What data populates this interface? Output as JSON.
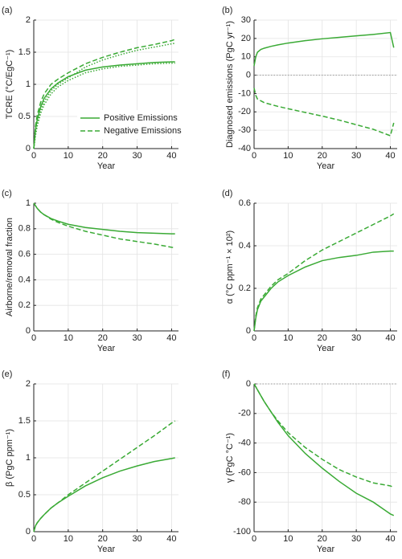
{
  "chart_data": [
    {
      "type": "line",
      "title": "(a)",
      "x_label": "Year",
      "y_label": "TCRE (°C/EgC⁻¹)",
      "x": [
        0,
        0.5,
        1,
        2,
        3,
        5,
        7,
        10,
        15,
        20,
        25,
        30,
        35,
        40,
        41
      ],
      "xlim": [
        0,
        42
      ],
      "xticks": [
        0,
        10,
        20,
        30,
        40
      ],
      "ylim": [
        0,
        2
      ],
      "yticks": [
        0,
        0.5,
        1,
        1.5,
        2
      ],
      "grid": true,
      "zero_line": false,
      "legend": "lower right",
      "series": [
        {
          "name": "Positive Emissions",
          "color": "#3aaa35",
          "style": "solid",
          "values": [
            0,
            0.3,
            0.45,
            0.65,
            0.78,
            0.93,
            1.02,
            1.12,
            1.22,
            1.27,
            1.3,
            1.32,
            1.34,
            1.35,
            1.35
          ]
        },
        {
          "name": "Negative Emissions",
          "color": "#3aaa35",
          "style": "dashed",
          "values": [
            0,
            0.35,
            0.52,
            0.72,
            0.85,
            1.0,
            1.08,
            1.18,
            1.32,
            1.42,
            1.5,
            1.57,
            1.62,
            1.68,
            1.7
          ]
        },
        {
          "color": "#3aaa35",
          "style": "dotted",
          "values": [
            0,
            0.25,
            0.4,
            0.6,
            0.73,
            0.9,
            1.0,
            1.1,
            1.27,
            1.38,
            1.46,
            1.53,
            1.58,
            1.63,
            1.64
          ]
        },
        {
          "color": "#3aaa35",
          "style": "dotted",
          "values": [
            0,
            0.2,
            0.35,
            0.55,
            0.68,
            0.85,
            0.96,
            1.06,
            1.18,
            1.24,
            1.28,
            1.3,
            1.32,
            1.33,
            1.33
          ]
        }
      ]
    },
    {
      "type": "line",
      "title": "(b)",
      "x_label": "Year",
      "y_label": "Diagnosed emissions (PgC yr⁻¹)",
      "x": [
        0,
        0.5,
        1,
        2,
        3,
        5,
        7,
        10,
        15,
        20,
        25,
        30,
        35,
        40,
        41
      ],
      "xlim": [
        0,
        42
      ],
      "xticks": [
        0,
        10,
        20,
        30,
        40
      ],
      "ylim": [
        -40,
        30
      ],
      "yticks": [
        -40,
        -30,
        -20,
        -10,
        0,
        10,
        20,
        30
      ],
      "grid": true,
      "zero_line": true,
      "series": [
        {
          "color": "#3aaa35",
          "style": "solid",
          "values": [
            5,
            10,
            12.5,
            14,
            14.7,
            15.7,
            16.5,
            17.5,
            18.8,
            19.8,
            20.6,
            21.4,
            22.2,
            23.2,
            15
          ]
        },
        {
          "color": "#3aaa35",
          "style": "dashed",
          "values": [
            -7,
            -11,
            -13,
            -14,
            -15,
            -16,
            -17,
            -18.3,
            -20.3,
            -22.3,
            -24.5,
            -27,
            -29.5,
            -33,
            -26
          ]
        }
      ]
    },
    {
      "type": "line",
      "title": "(c)",
      "x_label": "Year",
      "y_label": "Airborne/removal fraction",
      "x": [
        0,
        0.5,
        1,
        2,
        3,
        5,
        7,
        10,
        15,
        20,
        25,
        30,
        35,
        40,
        41
      ],
      "xlim": [
        0,
        42
      ],
      "xticks": [
        0,
        10,
        20,
        30,
        40
      ],
      "ylim": [
        0,
        1
      ],
      "yticks": [
        0,
        0.2,
        0.4,
        0.6,
        0.8,
        1
      ],
      "grid": true,
      "zero_line": false,
      "series": [
        {
          "color": "#3aaa35",
          "style": "solid",
          "values": [
            1,
            0.98,
            0.96,
            0.93,
            0.91,
            0.88,
            0.86,
            0.835,
            0.81,
            0.795,
            0.78,
            0.77,
            0.765,
            0.76,
            0.76
          ]
        },
        {
          "color": "#3aaa35",
          "style": "dashed",
          "values": [
            1,
            0.98,
            0.96,
            0.93,
            0.91,
            0.875,
            0.85,
            0.82,
            0.78,
            0.75,
            0.72,
            0.7,
            0.68,
            0.655,
            0.65
          ]
        }
      ]
    },
    {
      "type": "line",
      "title": "(d)",
      "x_label": "Year",
      "y_label": "α (°C ppm⁻¹ × 10²)",
      "x": [
        0,
        0.5,
        1,
        2,
        3,
        5,
        7,
        10,
        15,
        20,
        25,
        30,
        35,
        40,
        41
      ],
      "xlim": [
        0,
        42
      ],
      "xticks": [
        0,
        10,
        20,
        30,
        40
      ],
      "ylim": [
        0,
        0.6
      ],
      "yticks": [
        0,
        0.2,
        0.4,
        0.6
      ],
      "grid": true,
      "zero_line": false,
      "series": [
        {
          "color": "#3aaa35",
          "style": "solid",
          "values": [
            0,
            0.06,
            0.1,
            0.14,
            0.16,
            0.2,
            0.23,
            0.26,
            0.3,
            0.33,
            0.345,
            0.355,
            0.37,
            0.375,
            0.375
          ]
        },
        {
          "color": "#3aaa35",
          "style": "dashed",
          "values": [
            0,
            0.07,
            0.11,
            0.15,
            0.17,
            0.21,
            0.24,
            0.27,
            0.33,
            0.38,
            0.42,
            0.46,
            0.5,
            0.54,
            0.55
          ]
        }
      ]
    },
    {
      "type": "line",
      "title": "(e)",
      "x_label": "Year",
      "y_label": "β (PgC ppm⁻¹)",
      "x": [
        0,
        0.5,
        1,
        2,
        3,
        5,
        7,
        10,
        15,
        20,
        25,
        30,
        35,
        40,
        41
      ],
      "xlim": [
        0,
        42
      ],
      "xticks": [
        0,
        10,
        20,
        30,
        40
      ],
      "ylim": [
        0,
        2
      ],
      "yticks": [
        0,
        0.5,
        1,
        1.5,
        2
      ],
      "grid": true,
      "zero_line": false,
      "series": [
        {
          "color": "#3aaa35",
          "style": "solid",
          "values": [
            0,
            0.08,
            0.12,
            0.18,
            0.23,
            0.32,
            0.39,
            0.48,
            0.62,
            0.73,
            0.82,
            0.89,
            0.95,
            0.99,
            1.0
          ]
        },
        {
          "color": "#3aaa35",
          "style": "dashed",
          "values": [
            0,
            0.08,
            0.12,
            0.18,
            0.23,
            0.32,
            0.39,
            0.5,
            0.66,
            0.82,
            0.98,
            1.14,
            1.3,
            1.47,
            1.5
          ]
        }
      ]
    },
    {
      "type": "line",
      "title": "(f)",
      "x_label": "Year",
      "y_label": "γ (PgC °C⁻¹)",
      "x": [
        0,
        0.5,
        1,
        2,
        3,
        5,
        7,
        10,
        15,
        20,
        25,
        30,
        35,
        40,
        41
      ],
      "xlim": [
        0,
        42
      ],
      "xticks": [
        0,
        10,
        20,
        30,
        40
      ],
      "ylim": [
        -100,
        0
      ],
      "yticks": [
        -100,
        -80,
        -60,
        -40,
        -20,
        0
      ],
      "grid": true,
      "zero_line": true,
      "series": [
        {
          "color": "#3aaa35",
          "style": "solid",
          "values": [
            0,
            -2,
            -4,
            -8,
            -12,
            -19,
            -26,
            -35,
            -47,
            -57,
            -66,
            -74,
            -80,
            -88,
            -89
          ]
        },
        {
          "color": "#3aaa35",
          "style": "dashed",
          "values": [
            0,
            -2,
            -4,
            -8,
            -12,
            -19,
            -25,
            -33,
            -43,
            -51,
            -58,
            -63,
            -67,
            -69,
            -70
          ]
        }
      ]
    }
  ]
}
